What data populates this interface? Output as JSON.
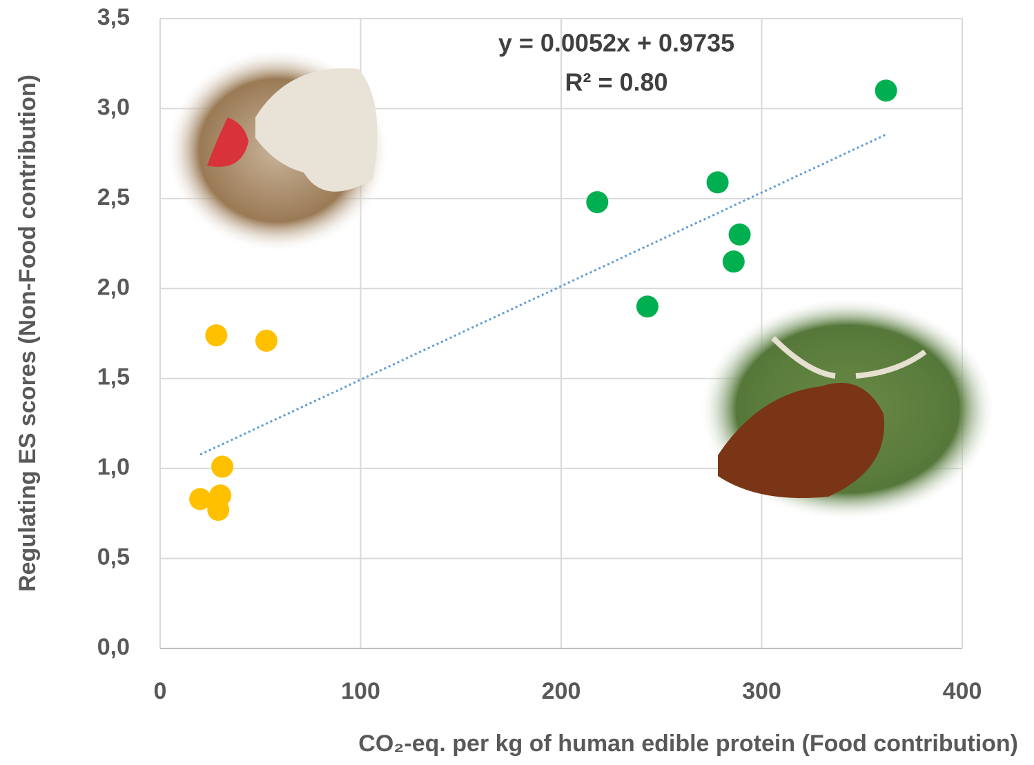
{
  "chart_data": {
    "type": "scatter",
    "x_label": "CO₂-eq. per kg of human edible protein (Food contribution)",
    "y_label": "Regulating ES scores (Non-Food contribution)",
    "xlim": [
      0,
      400
    ],
    "xticks": [
      0,
      100,
      200,
      300,
      400
    ],
    "ylim": [
      0,
      3.5
    ],
    "yticks": [
      {
        "value": 0,
        "label": "0,0"
      },
      {
        "value": 0.5,
        "label": "0,5"
      },
      {
        "value": 1,
        "label": "1,0"
      },
      {
        "value": 1.5,
        "label": "1,5"
      },
      {
        "value": 2,
        "label": "2,0"
      },
      {
        "value": 2.5,
        "label": "2,5"
      },
      {
        "value": 3,
        "label": "3,0"
      },
      {
        "value": 3.5,
        "label": "3,5"
      }
    ],
    "grid": true,
    "series": [
      {
        "color": "#ffc000",
        "x": [
          28,
          53,
          31,
          20,
          30,
          29
        ],
        "values": [
          1.74,
          1.71,
          1.01,
          0.83,
          0.85,
          0.77
        ]
      },
      {
        "color": "#00b050",
        "x": [
          218,
          243,
          278,
          289,
          286,
          362
        ],
        "values": [
          2.48,
          1.9,
          2.59,
          2.3,
          2.15,
          3.1
        ]
      }
    ],
    "trendline": {
      "equation": "y = 0.0052x + 0.9735",
      "r2": "R² = 0.80",
      "slope": 0.0052,
      "intercept": 0.9735,
      "x_range": [
        20,
        362
      ],
      "color": "#5b9bd5"
    }
  }
}
